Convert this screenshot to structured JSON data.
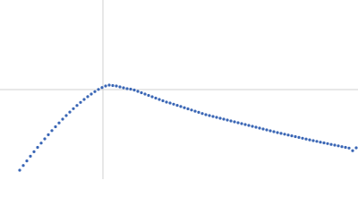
{
  "chart_data": {
    "type": "scatter",
    "color": "#3a66b5",
    "xlim": [
      0,
      400
    ],
    "ylim": [
      0,
      200
    ],
    "reference_lines": {
      "x": 115,
      "y": 100
    },
    "x": [
      22,
      26,
      30,
      34,
      38,
      42,
      46,
      50,
      54,
      58,
      62,
      66,
      70,
      74,
      78,
      82,
      86,
      90,
      94,
      98,
      102,
      106,
      110,
      114,
      118,
      122,
      126,
      130,
      134,
      138,
      142,
      146,
      150,
      154,
      158,
      162,
      166,
      170,
      174,
      178,
      182,
      186,
      190,
      194,
      198,
      202,
      206,
      210,
      214,
      218,
      222,
      226,
      230,
      234,
      238,
      242,
      246,
      250,
      254,
      258,
      262,
      266,
      270,
      274,
      278,
      282,
      286,
      290,
      294,
      298,
      302,
      306,
      310,
      314,
      318,
      322,
      326,
      330,
      334,
      338,
      342,
      346,
      350,
      354,
      358,
      362,
      366,
      370,
      374,
      378,
      382,
      386,
      390,
      394,
      398
    ],
    "values": [
      10,
      15.3,
      20.4,
      25.6,
      30.6,
      35.5,
      40.3,
      45,
      49.6,
      54.2,
      58.5,
      62.8,
      67,
      71,
      74.9,
      78.7,
      82.3,
      85.7,
      89,
      92.1,
      95,
      97.7,
      100.2,
      102.3,
      104,
      105,
      104.5,
      104,
      103,
      102,
      101,
      100.5,
      99.5,
      98,
      96.5,
      95,
      93.5,
      92,
      90.5,
      89,
      87.5,
      86,
      85,
      83.7,
      82.4,
      81.1,
      79.8,
      78.5,
      77.2,
      75.9,
      74.6,
      73.3,
      72,
      71,
      70,
      69,
      68,
      67,
      66,
      65,
      64,
      63,
      62,
      61,
      60,
      59,
      58,
      57,
      56,
      55,
      54,
      53,
      52,
      51.1,
      50.2,
      49.3,
      48.4,
      47.5,
      46.6,
      45.7,
      44.8,
      43.9,
      43,
      42.2,
      41.3,
      40.5,
      39.7,
      38.8,
      38,
      37.2,
      36.3,
      35.5,
      34.7,
      31.8,
      35
    ]
  }
}
